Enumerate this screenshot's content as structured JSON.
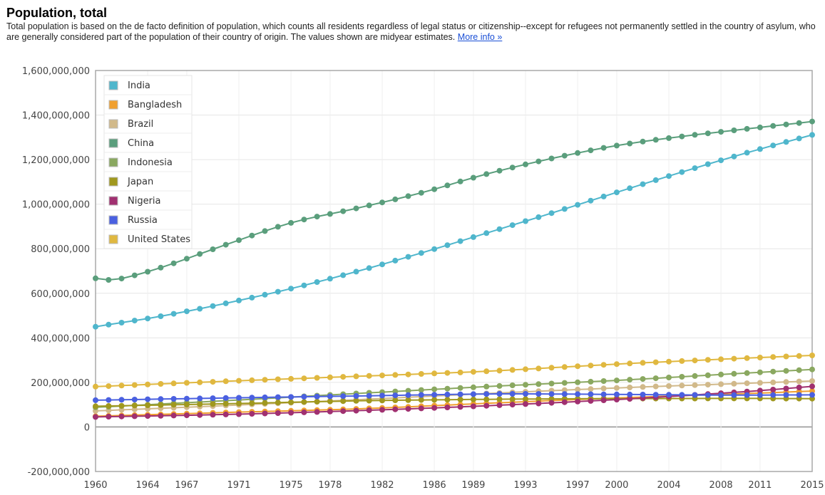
{
  "header": {
    "title": "Population, total",
    "description": "Total population is based on the de facto definition of population, which counts all residents regardless of legal status or citizenship--except for refugees not permanently settled in the country of asylum, who are generally considered part of the population of their country of origin. The values shown are midyear estimates.",
    "more_info": "More info »"
  },
  "chart_data": {
    "type": "line",
    "title": "Population, total",
    "xlabel": "",
    "ylabel": "",
    "xlim": [
      1960,
      2015
    ],
    "ylim": [
      -200000000,
      1600000000
    ],
    "grid": true,
    "legend_position": "top-left",
    "x_tick_labels": [
      "1960",
      "1964",
      "1967",
      "1971",
      "1975",
      "1978",
      "1982",
      "1986",
      "1989",
      "1993",
      "1997",
      "2000",
      "2004",
      "2008",
      "2011",
      "2015"
    ],
    "y_tick_labels": [
      "1,600,000,000",
      "1,400,000,000",
      "1,200,000,000",
      "1,000,000,000",
      "800,000,000",
      "600,000,000",
      "400,000,000",
      "200,000,000",
      "0",
      "-200,000,000"
    ],
    "y_tick_values": [
      1600000000,
      1400000000,
      1200000000,
      1000000000,
      800000000,
      600000000,
      400000000,
      200000000,
      0,
      -200000000
    ],
    "series": [
      {
        "name": "India",
        "color": "#4fb6cc",
        "anchors": [
          [
            1960,
            450000000
          ],
          [
            1965,
            497000000
          ],
          [
            1970,
            555000000
          ],
          [
            1975,
            621000000
          ],
          [
            1980,
            697000000
          ],
          [
            1985,
            781000000
          ],
          [
            1990,
            870000000
          ],
          [
            1995,
            960000000
          ],
          [
            2000,
            1053000000
          ],
          [
            2005,
            1144000000
          ],
          [
            2010,
            1231000000
          ],
          [
            2015,
            1311000000
          ]
        ]
      },
      {
        "name": "Bangladesh",
        "color": "#f0a030",
        "anchors": [
          [
            1960,
            48000000
          ],
          [
            1970,
            65000000
          ],
          [
            1980,
            81000000
          ],
          [
            1990,
            106000000
          ],
          [
            2000,
            130000000
          ],
          [
            2010,
            150000000
          ],
          [
            2015,
            161000000
          ]
        ]
      },
      {
        "name": "Brazil",
        "color": "#d1b98a",
        "anchors": [
          [
            1960,
            72000000
          ],
          [
            1970,
            96000000
          ],
          [
            1980,
            122000000
          ],
          [
            1990,
            150000000
          ],
          [
            2000,
            175000000
          ],
          [
            2010,
            196000000
          ],
          [
            2015,
            206000000
          ]
        ]
      },
      {
        "name": "China",
        "color": "#5a9e7c",
        "anchors": [
          [
            1960,
            667000000
          ],
          [
            1961,
            660000000
          ],
          [
            1962,
            666000000
          ],
          [
            1965,
            715000000
          ],
          [
            1970,
            818000000
          ],
          [
            1975,
            916000000
          ],
          [
            1980,
            981000000
          ],
          [
            1985,
            1051000000
          ],
          [
            1990,
            1135000000
          ],
          [
            1995,
            1205000000
          ],
          [
            2000,
            1263000000
          ],
          [
            2005,
            1304000000
          ],
          [
            2010,
            1338000000
          ],
          [
            2015,
            1371000000
          ]
        ]
      },
      {
        "name": "Indonesia",
        "color": "#8aa860",
        "anchors": [
          [
            1960,
            88000000
          ],
          [
            1970,
            118000000
          ],
          [
            1980,
            150000000
          ],
          [
            1990,
            181000000
          ],
          [
            2000,
            209000000
          ],
          [
            2010,
            242000000
          ],
          [
            2015,
            258000000
          ]
        ]
      },
      {
        "name": "Japan",
        "color": "#a0981e",
        "anchors": [
          [
            1960,
            93000000
          ],
          [
            1970,
            104000000
          ],
          [
            1980,
            117000000
          ],
          [
            1990,
            124000000
          ],
          [
            2000,
            127000000
          ],
          [
            2010,
            128000000
          ],
          [
            2015,
            127000000
          ]
        ]
      },
      {
        "name": "Nigeria",
        "color": "#a03070",
        "anchors": [
          [
            1960,
            45000000
          ],
          [
            1970,
            56000000
          ],
          [
            1980,
            73000000
          ],
          [
            1990,
            95000000
          ],
          [
            2000,
            123000000
          ],
          [
            2010,
            159000000
          ],
          [
            2015,
            182000000
          ]
        ]
      },
      {
        "name": "Russia",
        "color": "#4a60e0",
        "anchors": [
          [
            1960,
            120000000
          ],
          [
            1970,
            130000000
          ],
          [
            1980,
            139000000
          ],
          [
            1990,
            148000000
          ],
          [
            1993,
            148500000
          ],
          [
            2000,
            146000000
          ],
          [
            2008,
            142800000
          ],
          [
            2010,
            142900000
          ],
          [
            2015,
            144000000
          ]
        ]
      },
      {
        "name": "United States",
        "color": "#e0b840",
        "anchors": [
          [
            1960,
            181000000
          ],
          [
            1970,
            205000000
          ],
          [
            1980,
            227000000
          ],
          [
            1990,
            250000000
          ],
          [
            2000,
            282000000
          ],
          [
            2010,
            309000000
          ],
          [
            2015,
            321000000
          ]
        ]
      }
    ]
  }
}
